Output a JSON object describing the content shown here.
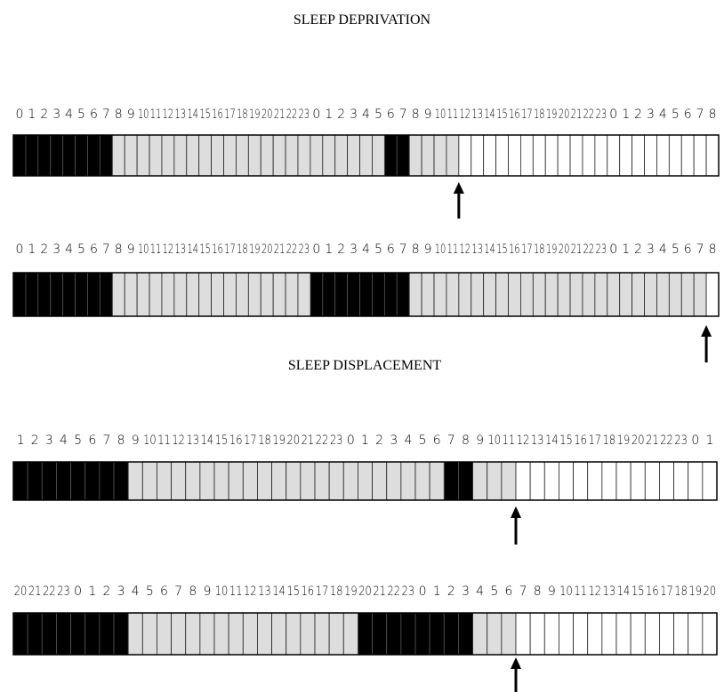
{
  "sections": [
    {
      "title": "SLEEP DEPRIVATION",
      "timelines": [
        {
          "labels": [
            0,
            1,
            2,
            3,
            4,
            5,
            6,
            7,
            8,
            9,
            10,
            11,
            12,
            13,
            14,
            15,
            16,
            17,
            18,
            19,
            20,
            21,
            22,
            23,
            0,
            1,
            2,
            3,
            4,
            5,
            6,
            7,
            8,
            9,
            10,
            11,
            12,
            13,
            14,
            15,
            16,
            17,
            18,
            19,
            20,
            21,
            22,
            23,
            0,
            1,
            2,
            3,
            4,
            5,
            6,
            7,
            8
          ],
          "cells": [
            "#000",
            "#000",
            "#000",
            "#000",
            "#000",
            "#000",
            "#000",
            "#000",
            "#ddd",
            "#ddd",
            "#ddd",
            "#ddd",
            "#ddd",
            "#ddd",
            "#ddd",
            "#ddd",
            "#ddd",
            "#ddd",
            "#ddd",
            "#ddd",
            "#ddd",
            "#ddd",
            "#ddd",
            "#ddd",
            "#ddd",
            "#ddd",
            "#ddd",
            "#ddd",
            "#ddd",
            "#ddd",
            "#000",
            "#000",
            "#ddd",
            "#ddd",
            "#ddd",
            "#ddd",
            "#fff",
            "#fff",
            "#fff",
            "#fff",
            "#fff",
            "#fff",
            "#fff",
            "#fff",
            "#fff",
            "#fff",
            "#fff",
            "#fff",
            "#fff",
            "#fff",
            "#fff",
            "#fff",
            "#fff",
            "#fff",
            "#fff",
            "#fff",
            "#fff"
          ],
          "arrow": 36
        },
        {
          "labels": [
            0,
            1,
            2,
            3,
            4,
            5,
            6,
            7,
            8,
            9,
            10,
            11,
            12,
            13,
            14,
            15,
            16,
            17,
            18,
            19,
            20,
            21,
            22,
            23,
            0,
            1,
            2,
            3,
            4,
            5,
            6,
            7,
            8,
            9,
            10,
            11,
            12,
            13,
            14,
            15,
            16,
            17,
            18,
            19,
            20,
            21,
            22,
            23,
            0,
            1,
            2,
            3,
            4,
            5,
            6,
            7,
            8
          ],
          "cells": [
            "#000",
            "#000",
            "#000",
            "#000",
            "#000",
            "#000",
            "#000",
            "#000",
            "#ddd",
            "#ddd",
            "#ddd",
            "#ddd",
            "#ddd",
            "#ddd",
            "#ddd",
            "#ddd",
            "#ddd",
            "#ddd",
            "#ddd",
            "#ddd",
            "#ddd",
            "#ddd",
            "#ddd",
            "#ddd",
            "#000",
            "#000",
            "#000",
            "#000",
            "#000",
            "#000",
            "#000",
            "#000",
            "#ddd",
            "#ddd",
            "#ddd",
            "#ddd",
            "#ddd",
            "#ddd",
            "#ddd",
            "#ddd",
            "#ddd",
            "#ddd",
            "#ddd",
            "#ddd",
            "#ddd",
            "#ddd",
            "#ddd",
            "#ddd",
            "#ddd",
            "#ddd",
            "#ddd",
            "#ddd",
            "#ddd",
            "#ddd",
            "#ddd",
            "#ddd",
            "#fff"
          ],
          "arrow": 56
        }
      ]
    },
    {
      "title": "SLEEP DISPLACEMENT",
      "timelines": [
        {
          "labels": [
            1,
            2,
            3,
            4,
            5,
            6,
            7,
            8,
            9,
            10,
            11,
            12,
            13,
            14,
            15,
            16,
            17,
            18,
            19,
            20,
            21,
            22,
            23,
            0,
            1,
            2,
            3,
            4,
            5,
            6,
            7,
            8,
            9,
            10,
            11,
            12,
            13,
            14,
            15,
            16,
            17,
            18,
            19,
            20,
            21,
            22,
            23,
            0,
            1
          ],
          "cells": [
            "#000",
            "#000",
            "#000",
            "#000",
            "#000",
            "#000",
            "#000",
            "#000",
            "#ddd",
            "#ddd",
            "#ddd",
            "#ddd",
            "#ddd",
            "#ddd",
            "#ddd",
            "#ddd",
            "#ddd",
            "#ddd",
            "#ddd",
            "#ddd",
            "#ddd",
            "#ddd",
            "#ddd",
            "#ddd",
            "#ddd",
            "#ddd",
            "#ddd",
            "#ddd",
            "#ddd",
            "#ddd",
            "#000",
            "#000",
            "#ddd",
            "#ddd",
            "#ddd",
            "#fff",
            "#fff",
            "#fff",
            "#fff",
            "#fff",
            "#fff",
            "#fff",
            "#fff",
            "#fff",
            "#fff",
            "#fff",
            "#fff",
            "#fff",
            "#fff"
          ],
          "arrow": 35
        },
        {
          "labels": [
            20,
            21,
            22,
            23,
            0,
            1,
            2,
            3,
            4,
            5,
            6,
            7,
            8,
            9,
            10,
            11,
            12,
            13,
            14,
            15,
            16,
            17,
            18,
            19,
            20,
            21,
            22,
            23,
            0,
            1,
            2,
            3,
            4,
            5,
            6,
            7,
            8,
            9,
            10,
            11,
            12,
            13,
            14,
            15,
            16,
            17,
            18,
            19,
            20
          ],
          "cells": [
            "#000",
            "#000",
            "#000",
            "#000",
            "#000",
            "#000",
            "#000",
            "#000",
            "#ddd",
            "#ddd",
            "#ddd",
            "#ddd",
            "#ddd",
            "#ddd",
            "#ddd",
            "#ddd",
            "#ddd",
            "#ddd",
            "#ddd",
            "#ddd",
            "#ddd",
            "#ddd",
            "#ddd",
            "#ddd",
            "#000",
            "#000",
            "#000",
            "#000",
            "#000",
            "#000",
            "#000",
            "#000",
            "#ddd",
            "#ddd",
            "#ddd",
            "#fff",
            "#fff",
            "#fff",
            "#fff",
            "#fff",
            "#fff",
            "#fff",
            "#fff",
            "#fff",
            "#fff",
            "#fff",
            "#fff",
            "#fff",
            "#fff"
          ],
          "arrow": 35
        }
      ]
    }
  ]
}
